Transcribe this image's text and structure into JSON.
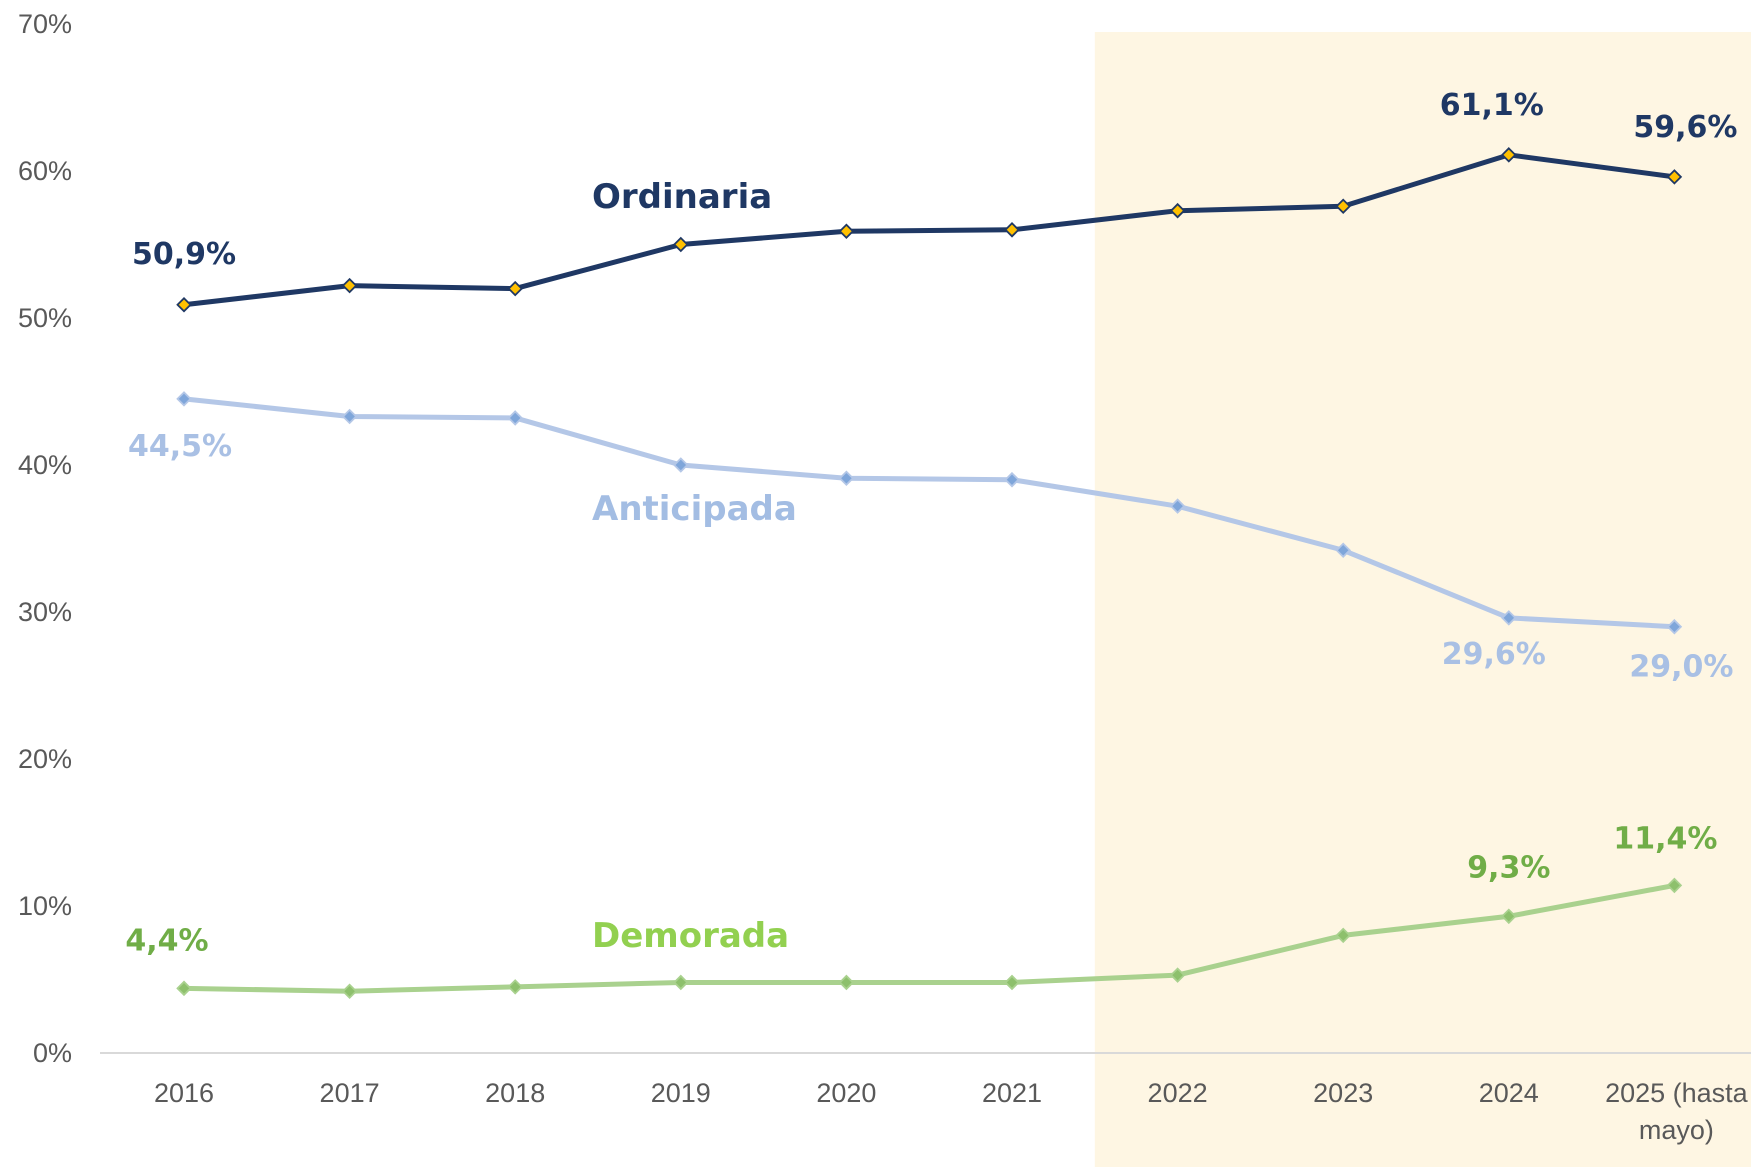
{
  "chart_data": {
    "type": "line",
    "title": "",
    "xlabel": "",
    "ylabel": "",
    "ylim": [
      0,
      70
    ],
    "yticks": [
      "0%",
      "10%",
      "20%",
      "30%",
      "40%",
      "50%",
      "60%",
      "70%"
    ],
    "categories": [
      "2016",
      "2017",
      "2018",
      "2019",
      "2020",
      "2021",
      "2022",
      "2023",
      "2024",
      "2025 (hasta mayo)"
    ],
    "category_lines": [
      [
        "2016"
      ],
      [
        "2017"
      ],
      [
        "2018"
      ],
      [
        "2019"
      ],
      [
        "2020"
      ],
      [
        "2021"
      ],
      [
        "2022"
      ],
      [
        "2023"
      ],
      [
        "2024"
      ],
      [
        "2025 (hasta",
        "mayo)"
      ]
    ],
    "highlight_range": [
      "2022",
      "2025 (hasta mayo)"
    ],
    "highlight_color": "#FEF6E3",
    "grid": false,
    "legend": "none",
    "series": [
      {
        "name": "Ordinaria",
        "color": "#1F3864",
        "marker_color": "#FFC000",
        "values": [
          50.9,
          52.2,
          52.0,
          55.0,
          55.9,
          56.0,
          57.3,
          57.6,
          61.1,
          59.6
        ],
        "data_labels": [
          {
            "index": 0,
            "text": "50,9%"
          },
          {
            "index": 8,
            "text": "61,1%"
          },
          {
            "index": 9,
            "text": "59,6%"
          }
        ]
      },
      {
        "name": "Anticipada",
        "color": "#B4C7E7",
        "marker_color": "#7FA6DA",
        "values": [
          44.5,
          43.3,
          43.2,
          40.0,
          39.1,
          39.0,
          37.2,
          34.2,
          29.6,
          29.0
        ],
        "data_labels": [
          {
            "index": 0,
            "text": "44,5%"
          },
          {
            "index": 8,
            "text": "29,6%"
          },
          {
            "index": 9,
            "text": "29,0%"
          }
        ]
      },
      {
        "name": "Demorada",
        "color": "#A9D18E",
        "marker_color": "#8DC06C",
        "label_color": "#70AD47",
        "values": [
          4.4,
          4.2,
          4.5,
          4.8,
          4.8,
          4.8,
          5.3,
          8.0,
          9.3,
          11.4
        ],
        "data_labels": [
          {
            "index": 0,
            "text": "4,4%"
          },
          {
            "index": 8,
            "text": "9,3%"
          },
          {
            "index": 9,
            "text": "11,4%"
          }
        ]
      }
    ]
  }
}
